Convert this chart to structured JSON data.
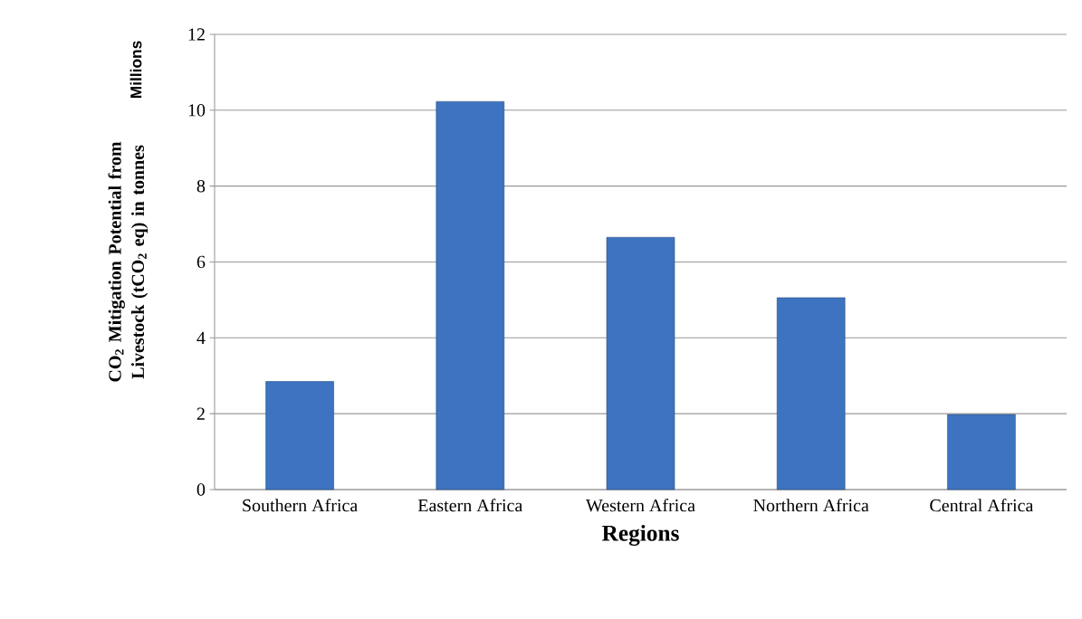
{
  "chart_data": {
    "type": "bar",
    "xlabel": "Regions",
    "ylabel": "CO$_{2}$ Mitigation Potential from Livestock (tCO$_{2}$ eq) in tonnes",
    "annotations": [
      "Millions"
    ],
    "categories": [
      "Southern Africa",
      "Eastern Africa",
      "Western Africa",
      "Northern Africa",
      "Central Africa"
    ],
    "values": [
      2.85,
      10.23,
      6.65,
      5.06,
      1.98
    ],
    "color": "#3d73c0",
    "ylim": [
      0,
      12
    ],
    "yticks": [
      0,
      2,
      4,
      6,
      8,
      10,
      12
    ],
    "grid": "y"
  }
}
